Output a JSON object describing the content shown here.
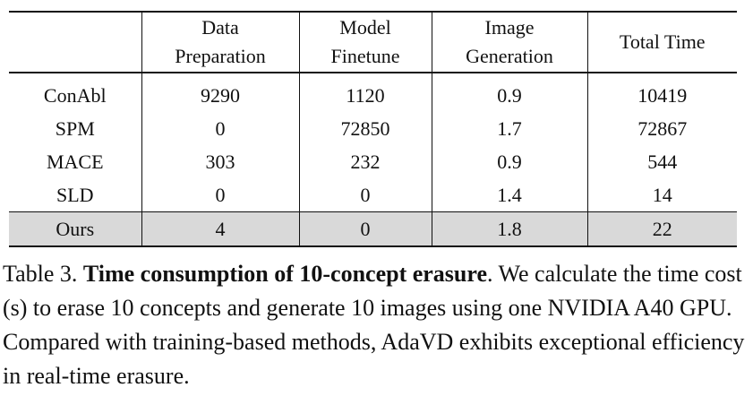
{
  "table": {
    "header": {
      "col0": "",
      "col1_line1": "Data",
      "col1_line2": "Preparation",
      "col2_line1": "Model",
      "col2_line2": "Finetune",
      "col3_line1": "Image",
      "col3_line2": "Generation",
      "col4": "Total Time"
    },
    "rows": [
      {
        "method": "ConAbl",
        "data_prep": "9290",
        "finetune": "1120",
        "generation": "0.9",
        "total": "10419"
      },
      {
        "method": "SPM",
        "data_prep": "0",
        "finetune": "72850",
        "generation": "1.7",
        "total": "72867"
      },
      {
        "method": "MACE",
        "data_prep": "303",
        "finetune": "232",
        "generation": "0.9",
        "total": "544"
      },
      {
        "method": "SLD",
        "data_prep": "0",
        "finetune": "0",
        "generation": "1.4",
        "total": "14"
      },
      {
        "method": "Ours",
        "data_prep": "4",
        "finetune": "0",
        "generation": "1.8",
        "total": "22"
      }
    ],
    "highlight_color": "#d9d9d9"
  },
  "caption": {
    "label": "Table 3.",
    "title": "Time consumption of 10-concept erasure",
    "body": ". We calculate the time cost (s) to erase 10 concepts and generate 10 images using one NVIDIA A40 GPU. Compared with training-based methods, AdaVD exhibits exceptional efficiency in real-time erasure."
  }
}
